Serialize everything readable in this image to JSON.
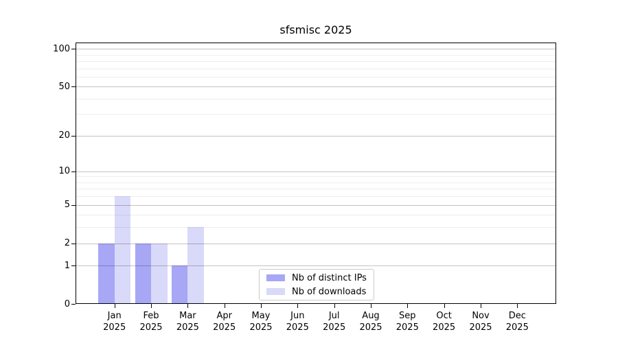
{
  "chart_data": {
    "type": "bar",
    "title": "sfsmisc 2025",
    "categories": [
      "Jan",
      "Feb",
      "Mar",
      "Apr",
      "May",
      "Jun",
      "Jul",
      "Aug",
      "Sep",
      "Oct",
      "Nov",
      "Dec"
    ],
    "x_tick_year": "2025",
    "series": [
      {
        "name": "Nb of distinct IPs",
        "color": "#a7a7f6",
        "values": [
          2,
          2,
          1,
          0,
          0,
          0,
          0,
          0,
          0,
          0,
          0,
          0
        ]
      },
      {
        "name": "Nb of downloads",
        "color": "#d9d9f9",
        "values": [
          6,
          2,
          3,
          0,
          0,
          0,
          0,
          0,
          0,
          0,
          0,
          0
        ]
      }
    ],
    "y_scale": "log1p",
    "y_ticks": [
      0,
      1,
      2,
      5,
      10,
      20,
      50,
      100
    ],
    "y_minor_ticks": [
      3,
      4,
      6,
      7,
      8,
      9,
      30,
      40,
      60,
      70,
      80,
      90
    ],
    "ylim": [
      0,
      112
    ],
    "grid": "horizontal",
    "legend_position": "lower-center"
  },
  "colors": {
    "background": "#ffffff",
    "axis": "#000000",
    "grid_major": "rgba(0,0,0,0.24)",
    "grid_minor": "rgba(0,0,0,0.07)",
    "legend_border": "#cbcbcb"
  }
}
